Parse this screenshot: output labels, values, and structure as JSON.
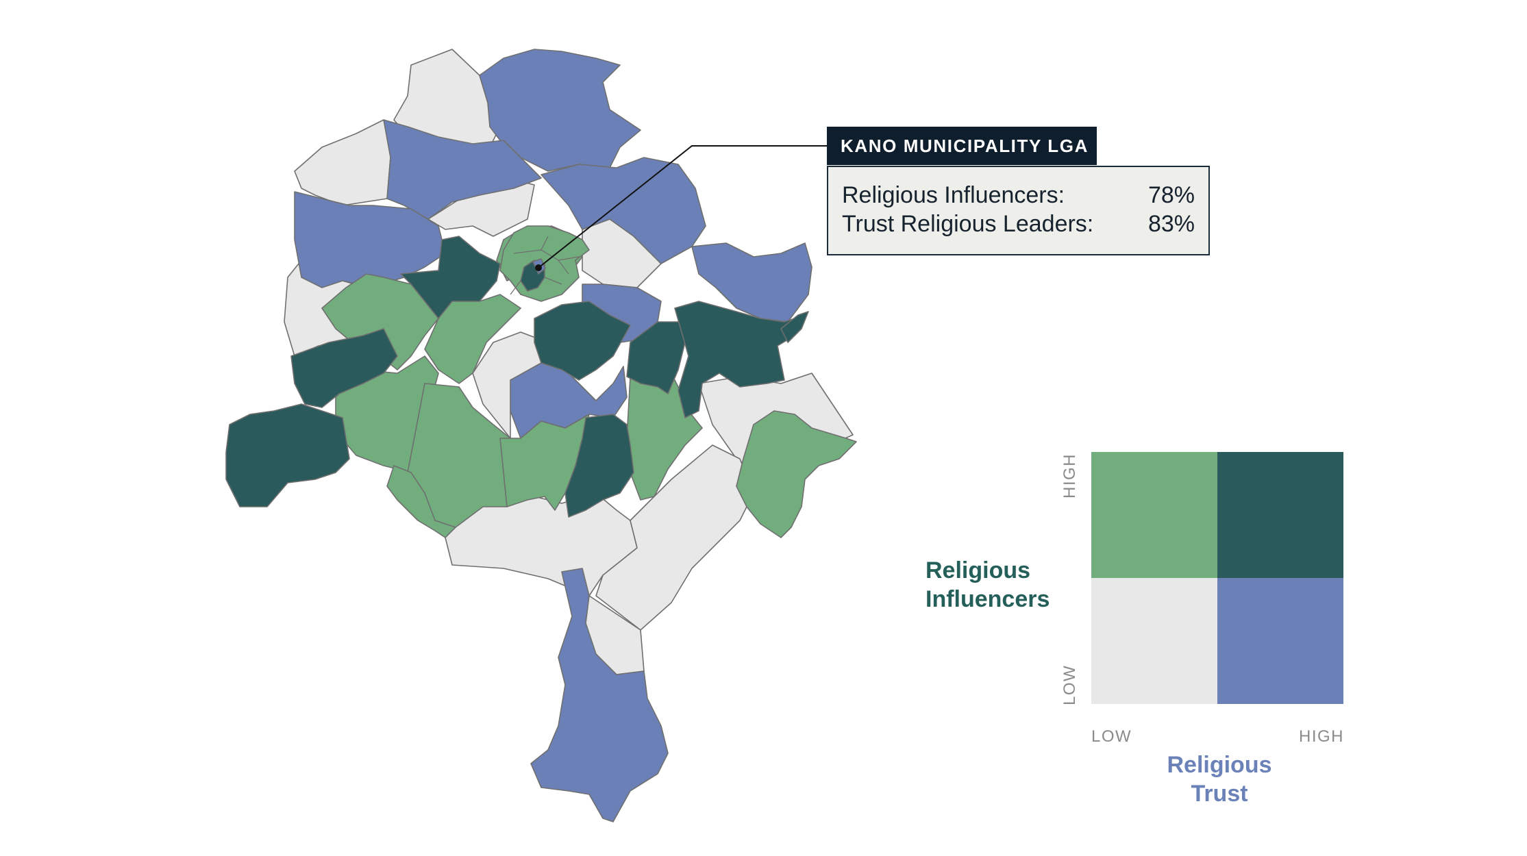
{
  "colors": {
    "low_low": "#e8e8e8",
    "high_inf_low_trust": "#72ad7e",
    "high_high": "#2a5a5c",
    "low_inf_high_trust": "#6b80b6"
  },
  "callout": {
    "title": "KANO MUNICIPALITY LGA",
    "rows": [
      {
        "label": "Religious Influencers:",
        "value": "78%"
      },
      {
        "label": "Trust Religious Leaders:",
        "value": "83%"
      }
    ]
  },
  "legend": {
    "y_title_line1": "Religious",
    "y_title_line2": "Influencers",
    "x_title_line1": "Religious",
    "x_title_line2": "Trust",
    "y_high": "HIGH",
    "y_low": "LOW",
    "x_low": "LOW",
    "x_high": "HIGH"
  }
}
